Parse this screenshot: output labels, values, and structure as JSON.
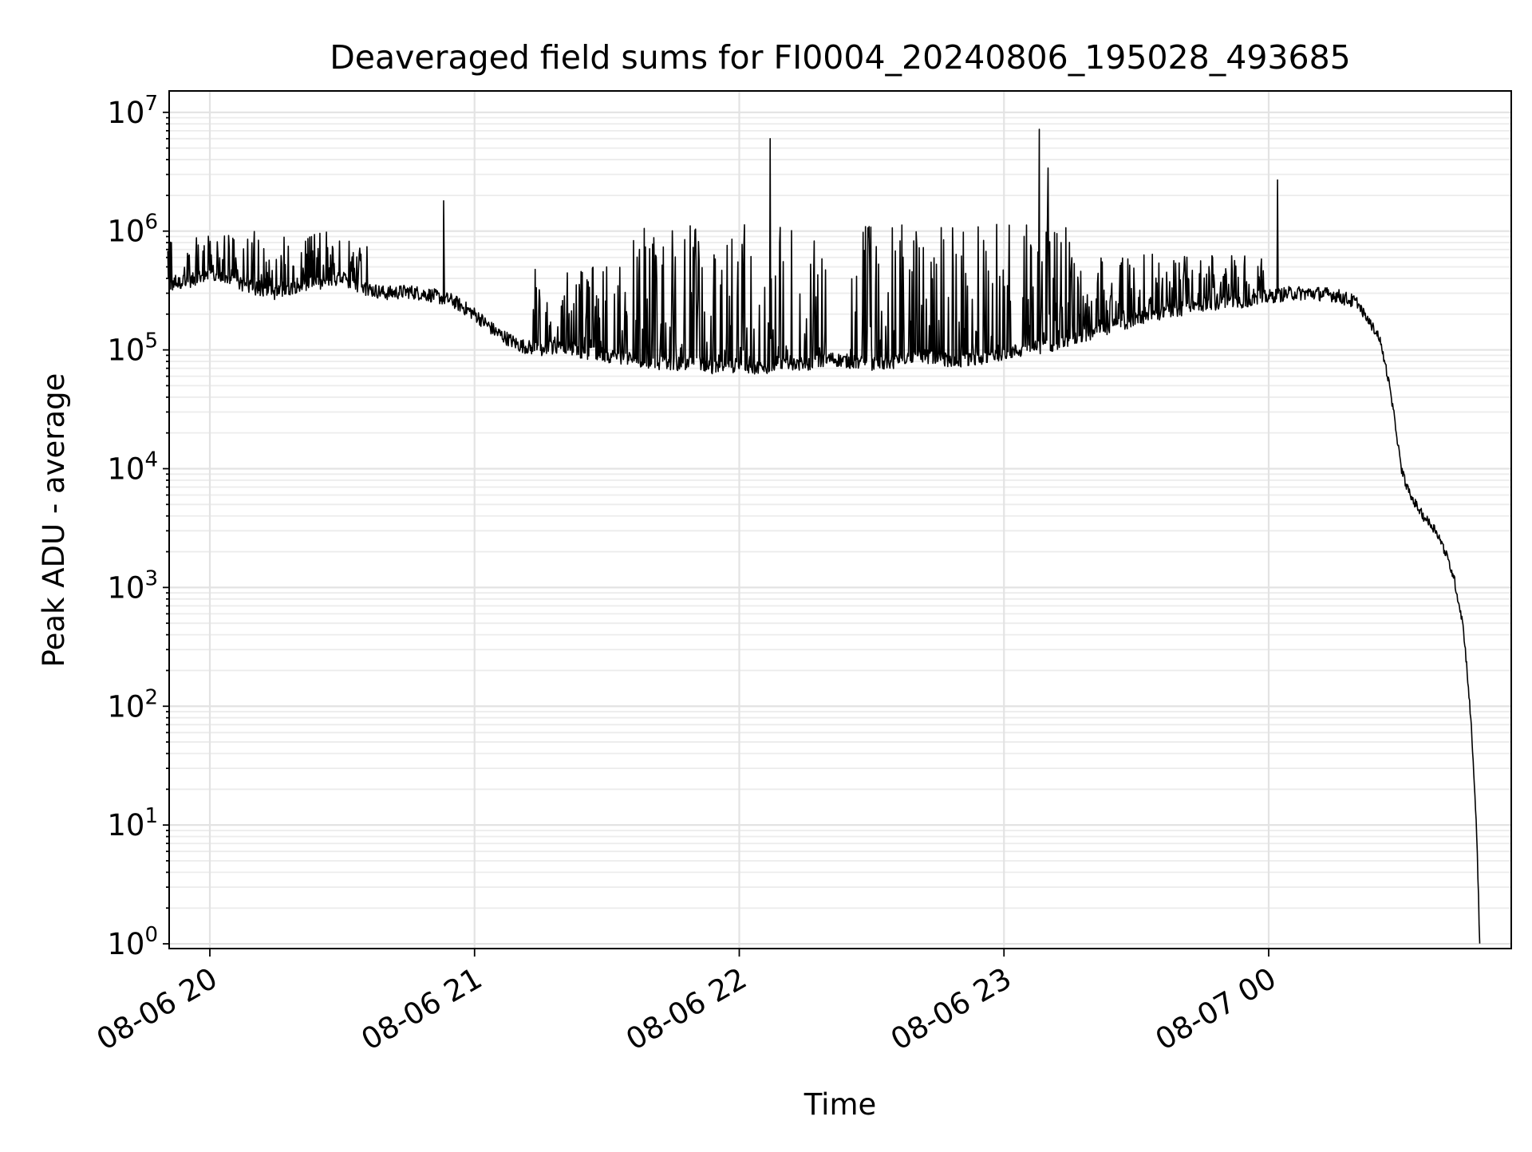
{
  "chart_data": {
    "type": "line",
    "title": "Deaveraged field sums for FI0004_20240806_195028_493685",
    "xlabel": "Time",
    "ylabel": "Peak ADU - average",
    "yscale": "log",
    "ylim": [
      1,
      15000000.0
    ],
    "xlim": [
      "2024-08-06 19:50:28",
      "2024-08-07 00:55:00"
    ],
    "grid": true,
    "grid_minor": true,
    "x_ticks": [
      "08-06 20",
      "08-06 21",
      "08-06 22",
      "08-06 23",
      "08-07 00"
    ],
    "y_ticks": [
      {
        "base": "10",
        "exp": "0"
      },
      {
        "base": "10",
        "exp": "1"
      },
      {
        "base": "10",
        "exp": "2"
      },
      {
        "base": "10",
        "exp": "3"
      },
      {
        "base": "10",
        "exp": "4"
      },
      {
        "base": "10",
        "exp": "5"
      },
      {
        "base": "10",
        "exp": "6"
      },
      {
        "base": "10",
        "exp": "7"
      }
    ],
    "line_color": "#000000",
    "series": [
      {
        "x": [
          "2024-08-06 19:50:28",
          "2024-08-06 19:55:00",
          "2024-08-06 20:00:00",
          "2024-08-06 20:05:00",
          "2024-08-06 20:10:00",
          "2024-08-06 20:15:00",
          "2024-08-06 20:20:00",
          "2024-08-06 20:25:00",
          "2024-08-06 20:30:00",
          "2024-08-06 20:35:00",
          "2024-08-06 20:40:00",
          "2024-08-06 20:45:00",
          "2024-08-06 20:50:00",
          "2024-08-06 20:55:00",
          "2024-08-06 21:00:00",
          "2024-08-06 21:05:00",
          "2024-08-06 21:10:00",
          "2024-08-06 21:15:00",
          "2024-08-06 21:20:00",
          "2024-08-06 21:25:00",
          "2024-08-06 21:30:00",
          "2024-08-06 21:35:00",
          "2024-08-06 21:40:00",
          "2024-08-06 21:45:00",
          "2024-08-06 21:50:00",
          "2024-08-06 21:55:00",
          "2024-08-06 22:00:00",
          "2024-08-06 22:05:00",
          "2024-08-06 22:10:00",
          "2024-08-06 22:15:00",
          "2024-08-06 22:20:00",
          "2024-08-06 22:25:00",
          "2024-08-06 22:30:00",
          "2024-08-06 22:35:00",
          "2024-08-06 22:40:00",
          "2024-08-06 22:45:00",
          "2024-08-06 22:50:00",
          "2024-08-06 22:55:00",
          "2024-08-06 23:00:00",
          "2024-08-06 23:05:00",
          "2024-08-06 23:10:00",
          "2024-08-06 23:15:00",
          "2024-08-06 23:20:00",
          "2024-08-06 23:25:00",
          "2024-08-06 23:30:00",
          "2024-08-06 23:35:00",
          "2024-08-06 23:40:00",
          "2024-08-06 23:45:00",
          "2024-08-06 23:50:00",
          "2024-08-06 23:55:00",
          "2024-08-07 00:00:00",
          "2024-08-07 00:05:00",
          "2024-08-07 00:10:00",
          "2024-08-07 00:15:00",
          "2024-08-07 00:20:00",
          "2024-08-07 00:22:00",
          "2024-08-07 00:25:00",
          "2024-08-07 00:27:00",
          "2024-08-07 00:29:00",
          "2024-08-07 00:30:00",
          "2024-08-07 00:32:00",
          "2024-08-07 00:35:00",
          "2024-08-07 00:38:00",
          "2024-08-07 00:40:00",
          "2024-08-07 00:42:00",
          "2024-08-07 00:44:00",
          "2024-08-07 00:45:00",
          "2024-08-07 00:46:00",
          "2024-08-07 00:47:00",
          "2024-08-07 00:47:30",
          "2024-08-07 00:47:50"
        ],
        "y": [
          350000,
          380000,
          420000,
          380000,
          330000,
          300000,
          350000,
          360000,
          400000,
          330000,
          300000,
          310000,
          290000,
          260000,
          200000,
          140000,
          110000,
          100000,
          110000,
          95000,
          90000,
          85000,
          80000,
          75000,
          80000,
          70000,
          75000,
          70000,
          80000,
          75000,
          85000,
          80000,
          75000,
          80000,
          90000,
          85000,
          80000,
          85000,
          95000,
          100000,
          110000,
          120000,
          140000,
          160000,
          180000,
          200000,
          220000,
          240000,
          250000,
          260000,
          280000,
          300000,
          300000,
          290000,
          250000,
          190000,
          130000,
          60000,
          20000,
          10000,
          6000,
          4000,
          3000,
          2000,
          1200,
          500,
          200,
          60,
          12,
          3,
          1
        ],
        "spikes": [
          {
            "x": "2024-08-06 20:53:00",
            "y": 1800000
          },
          {
            "x": "2024-08-06 22:07:00",
            "y": 6000000
          },
          {
            "x": "2024-08-06 23:08:00",
            "y": 7200000
          },
          {
            "x": "2024-08-06 23:10:00",
            "y": 3400000
          },
          {
            "x": "2024-08-07 00:02:00",
            "y": 2700000
          }
        ],
        "fluctuation_bands": [
          {
            "from": "2024-08-06 19:50:28",
            "to": "2024-08-06 20:36:00",
            "high": 1000000
          },
          {
            "from": "2024-08-06 21:13:00",
            "to": "2024-08-06 21:35:00",
            "high": 500000
          },
          {
            "from": "2024-08-06 21:35:00",
            "to": "2024-08-06 22:20:00",
            "high": 1200000
          },
          {
            "from": "2024-08-06 22:25:00",
            "to": "2024-08-06 23:15:00",
            "high": 1200000
          },
          {
            "from": "2024-08-06 23:15:00",
            "to": "2024-08-06 23:59:00",
            "high": 650000
          }
        ]
      }
    ]
  }
}
